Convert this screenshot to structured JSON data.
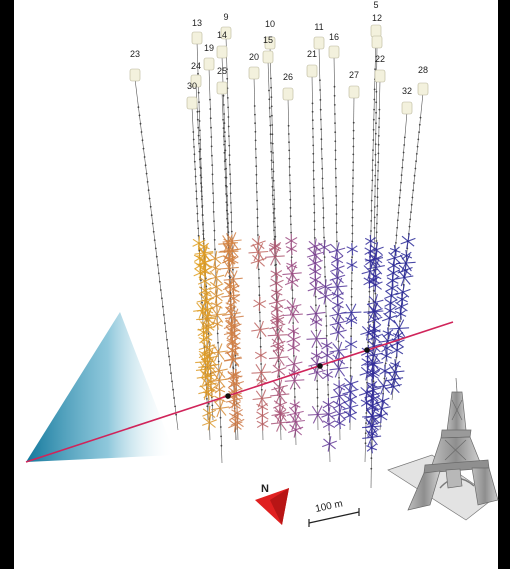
{
  "strings": [
    {
      "label": "5"
    },
    {
      "label": "9"
    },
    {
      "label": "10"
    },
    {
      "label": "11"
    },
    {
      "label": "12"
    },
    {
      "label": "13"
    },
    {
      "label": "14"
    },
    {
      "label": "15"
    },
    {
      "label": "16"
    },
    {
      "label": "19"
    },
    {
      "label": "20"
    },
    {
      "label": "21"
    },
    {
      "label": "22"
    },
    {
      "label": "23"
    },
    {
      "label": "24"
    },
    {
      "label": "25"
    },
    {
      "label": "26"
    },
    {
      "label": "27"
    },
    {
      "label": "28"
    },
    {
      "label": "30"
    },
    {
      "label": "32"
    }
  ],
  "compass": {
    "label": "N"
  },
  "scale_bar": {
    "label": "100 m"
  },
  "colors": {
    "track": "#d0245a",
    "cone": "#1a7fa6",
    "hits_near": "#e0a020",
    "hits_far": "#2a2a9a"
  }
}
